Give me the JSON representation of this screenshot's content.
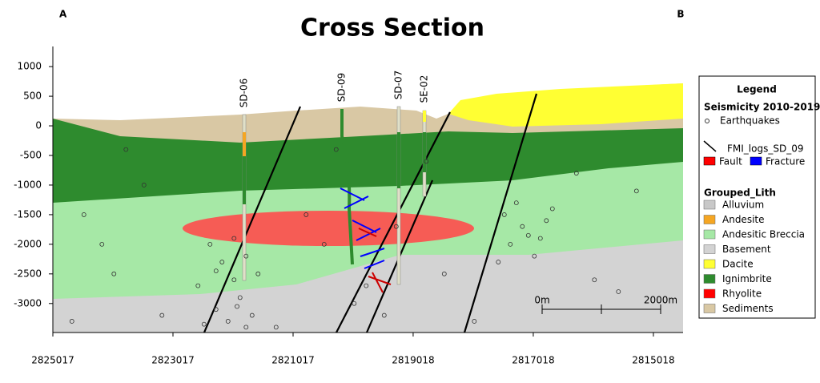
{
  "chart_data": {
    "type": "cross-section",
    "title": "Cross Section",
    "end_labels": [
      "A",
      "B"
    ],
    "xlim": [
      2825017,
      2814524
    ],
    "xticks": [
      2825017,
      2823017,
      2821017,
      2819018,
      2817018,
      2815018
    ],
    "ylim": [
      -3490,
      1340
    ],
    "yticks": [
      1000,
      500,
      0,
      -500,
      -1000,
      -1500,
      -2000,
      -2500,
      -3000
    ],
    "wells": [
      "SD-06",
      "SD-09",
      "SD-07",
      "SE-02"
    ],
    "earthquakes": {
      "x": [
        2822400,
        2822200,
        2822000,
        2821900,
        2822300,
        2822100,
        2821800,
        2822500,
        2821700,
        2822000,
        2821800,
        2822600,
        2821600,
        2822300,
        2821950,
        2817500,
        2817200,
        2816900,
        2817400,
        2816700,
        2817000,
        2817600,
        2816800,
        2817300,
        2817100,
        2824500,
        2824000,
        2823500,
        2823200,
        2824700,
        2820500,
        2820000,
        2819800,
        2820800,
        2819500,
        2818500,
        2818000,
        2816000,
        2815600,
        2815300,
        2816300,
        2818800,
        2820300,
        2823800,
        2819300,
        2821300,
        2824200
      ],
      "y": [
        -2000,
        -2300,
        -2600,
        -2900,
        -3100,
        -3300,
        -3400,
        -3350,
        -3200,
        -1900,
        -2200,
        -2700,
        -2500,
        -2450,
        -3050,
        -1500,
        -1700,
        -1900,
        -2000,
        -1400,
        -2200,
        -2300,
        -1600,
        -1300,
        -1850,
        -1500,
        -2500,
        -1000,
        -3200,
        -3300,
        -2000,
        -3000,
        -2700,
        -1500,
        -3200,
        -2500,
        -3300,
        -2600,
        -2800,
        -1100,
        -800,
        -600,
        -400,
        -400,
        -1700,
        -3400,
        -2000
      ]
    },
    "scale_bar": [
      "0m",
      "2000m"
    ],
    "legend": {
      "title": "Legend",
      "seismicity_title": "Seismicity 2010-2019",
      "earthquakes": "Earthquakes",
      "fmi_title": "FMI_logs_SD_09",
      "fault": {
        "label": "Fault",
        "color": "#ff0000"
      },
      "fracture": {
        "label": "Fracture",
        "color": "#0000ff"
      },
      "lith_title": "Grouped_Lith",
      "lith": [
        {
          "label": "Alluvium",
          "color": "#c8c8c8"
        },
        {
          "label": "Andesite",
          "color": "#f5a623"
        },
        {
          "label": "Andesitic Breccia",
          "color": "#a6e8a6"
        },
        {
          "label": "Basement",
          "color": "#d3d3d3"
        },
        {
          "label": "Dacite",
          "color": "#ffff33"
        },
        {
          "label": "Ignimbrite",
          "color": "#2e8b2e"
        },
        {
          "label": "Rhyolite",
          "color": "#ff0000"
        },
        {
          "label": "Sediments",
          "color": "#d9c8a4"
        }
      ]
    }
  }
}
